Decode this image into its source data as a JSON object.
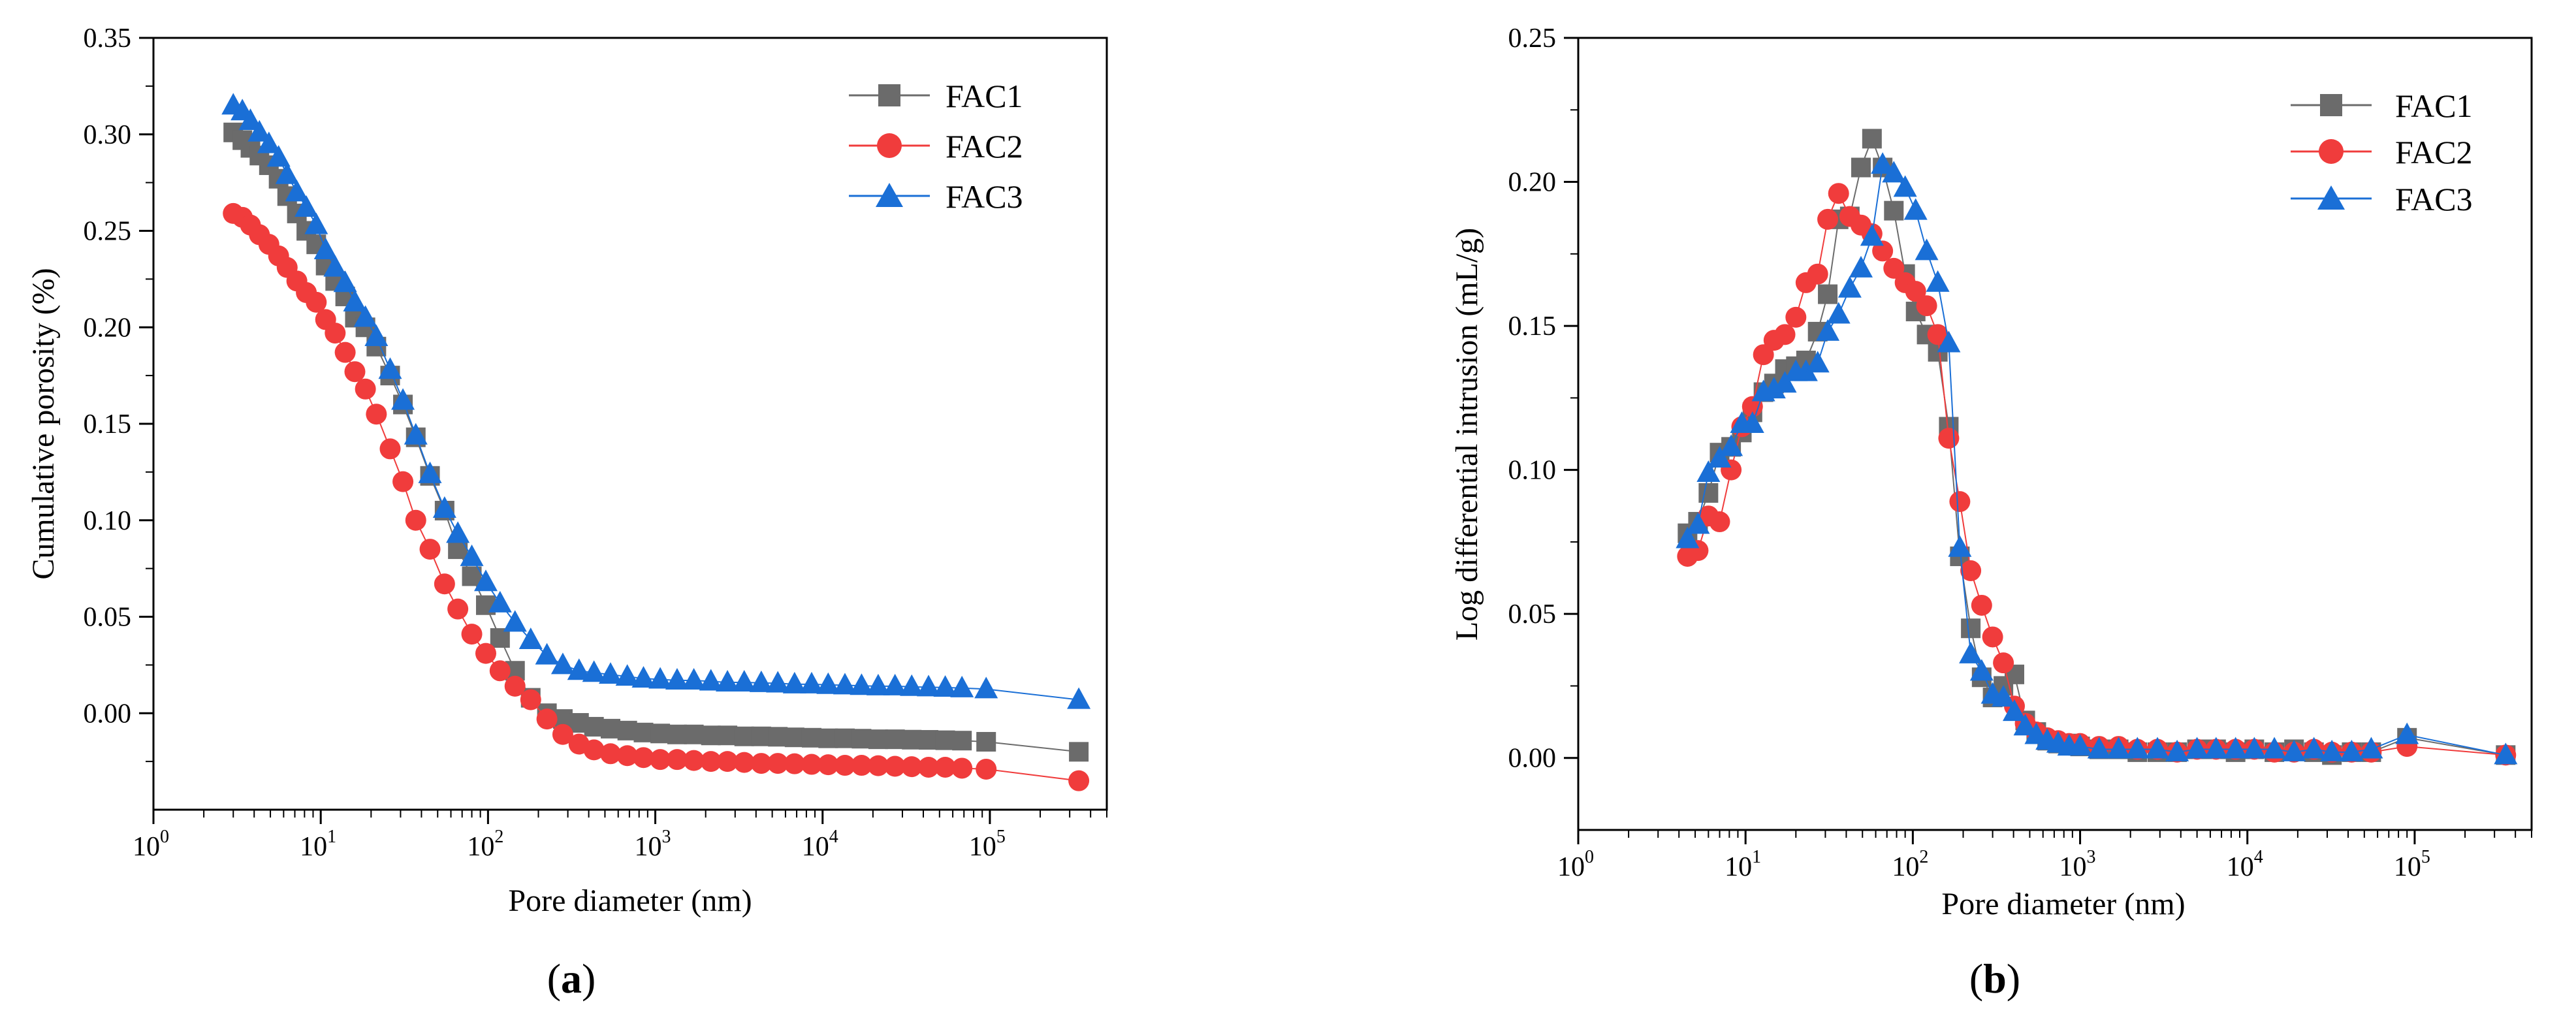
{
  "figure": {
    "panels": [
      {
        "id": "a",
        "label_prefix": "(",
        "label_letter": "a",
        "label_suffix": ")"
      },
      {
        "id": "b",
        "label_prefix": "(",
        "label_letter": "b",
        "label_suffix": ")"
      }
    ]
  },
  "chart_data": [
    {
      "type": "line",
      "panel": "a",
      "title": "",
      "xlabel": "Pore diameter (nm)",
      "ylabel": "Cumulative porosity (%)",
      "xscale": "log",
      "xlim": [
        1,
        500000
      ],
      "ylim": [
        -0.05,
        0.35
      ],
      "xticks": [
        {
          "base": "10",
          "exp": "0",
          "value": 1
        },
        {
          "base": "10",
          "exp": "1",
          "value": 10
        },
        {
          "base": "10",
          "exp": "2",
          "value": 100
        },
        {
          "base": "10",
          "exp": "3",
          "value": 1000
        },
        {
          "base": "10",
          "exp": "4",
          "value": 10000
        },
        {
          "base": "10",
          "exp": "5",
          "value": 100000
        }
      ],
      "yticks": [
        {
          "label": "0.00",
          "value": 0.0
        },
        {
          "label": "0.05",
          "value": 0.05
        },
        {
          "label": "0.10",
          "value": 0.1
        },
        {
          "label": "0.15",
          "value": 0.15
        },
        {
          "label": "0.20",
          "value": 0.2
        },
        {
          "label": "0.25",
          "value": 0.25
        },
        {
          "label": "0.30",
          "value": 0.3
        },
        {
          "label": "0.35",
          "value": 0.35
        }
      ],
      "legend_position": "top-right",
      "series": [
        {
          "name": "FAC1",
          "color": "#6b6b6b",
          "marker": "square",
          "x": [
            3,
            3.4,
            3.8,
            4.3,
            4.9,
            5.6,
            6.3,
            7.2,
            8.2,
            9.4,
            10.7,
            12.2,
            14,
            16,
            18.5,
            21.5,
            26,
            31,
            37,
            45,
            55,
            66,
            80,
            97,
            118,
            145,
            180,
            225,
            280,
            350,
            430,
            540,
            680,
            850,
            1070,
            1350,
            1700,
            2150,
            2700,
            3400,
            4300,
            5400,
            6800,
            8600,
            10800,
            13600,
            17100,
            21500,
            27100,
            34100,
            43000,
            54100,
            68100,
            95000,
            340000
          ],
          "y": [
            0.301,
            0.297,
            0.293,
            0.289,
            0.284,
            0.277,
            0.268,
            0.259,
            0.25,
            0.243,
            0.232,
            0.224,
            0.216,
            0.205,
            0.2,
            0.19,
            0.175,
            0.16,
            0.143,
            0.123,
            0.105,
            0.085,
            0.071,
            0.056,
            0.039,
            0.022,
            0.008,
            0.0,
            -0.003,
            -0.005,
            -0.007,
            -0.008,
            -0.009,
            -0.01,
            -0.0105,
            -0.011,
            -0.011,
            -0.0115,
            -0.0115,
            -0.012,
            -0.012,
            -0.0122,
            -0.0125,
            -0.0127,
            -0.013,
            -0.013,
            -0.0132,
            -0.0135,
            -0.0135,
            -0.0137,
            -0.0138,
            -0.014,
            -0.0142,
            -0.0148,
            -0.02
          ]
        },
        {
          "name": "FAC2",
          "color": "#f03c3c",
          "marker": "circle",
          "x": [
            3,
            3.4,
            3.8,
            4.3,
            4.9,
            5.6,
            6.3,
            7.2,
            8.2,
            9.4,
            10.7,
            12.2,
            14,
            16,
            18.5,
            21.5,
            26,
            31,
            37,
            45,
            55,
            66,
            80,
            97,
            118,
            145,
            180,
            225,
            280,
            350,
            430,
            540,
            680,
            850,
            1070,
            1350,
            1700,
            2150,
            2700,
            3400,
            4300,
            5400,
            6800,
            8600,
            10800,
            13600,
            17100,
            21500,
            27100,
            34100,
            43000,
            54100,
            68100,
            95000,
            340000
          ],
          "y": [
            0.259,
            0.257,
            0.253,
            0.248,
            0.243,
            0.237,
            0.231,
            0.224,
            0.218,
            0.213,
            0.204,
            0.197,
            0.187,
            0.177,
            0.168,
            0.155,
            0.137,
            0.12,
            0.1,
            0.085,
            0.067,
            0.054,
            0.041,
            0.031,
            0.022,
            0.014,
            0.007,
            -0.003,
            -0.011,
            -0.016,
            -0.019,
            -0.021,
            -0.022,
            -0.023,
            -0.024,
            -0.024,
            -0.0245,
            -0.025,
            -0.025,
            -0.0255,
            -0.026,
            -0.026,
            -0.0262,
            -0.0265,
            -0.0267,
            -0.027,
            -0.027,
            -0.0272,
            -0.0275,
            -0.0277,
            -0.028,
            -0.028,
            -0.0285,
            -0.029,
            -0.035
          ]
        },
        {
          "name": "FAC3",
          "color": "#1a6fd6",
          "marker": "triangle",
          "x": [
            3,
            3.4,
            3.8,
            4.3,
            4.9,
            5.6,
            6.3,
            7.2,
            8.2,
            9.4,
            10.7,
            12.2,
            14,
            16,
            18.5,
            21.5,
            26,
            31,
            37,
            45,
            55,
            66,
            80,
            97,
            118,
            145,
            180,
            225,
            280,
            350,
            430,
            540,
            680,
            850,
            1070,
            1350,
            1700,
            2150,
            2700,
            3400,
            4300,
            5400,
            6800,
            8600,
            10800,
            13600,
            17100,
            21500,
            27100,
            34100,
            43000,
            54100,
            68100,
            95000,
            340000
          ],
          "y": [
            0.315,
            0.312,
            0.307,
            0.301,
            0.295,
            0.288,
            0.279,
            0.27,
            0.262,
            0.253,
            0.24,
            0.231,
            0.223,
            0.213,
            0.205,
            0.195,
            0.178,
            0.162,
            0.144,
            0.124,
            0.106,
            0.093,
            0.081,
            0.068,
            0.057,
            0.047,
            0.038,
            0.03,
            0.025,
            0.022,
            0.021,
            0.02,
            0.019,
            0.018,
            0.0175,
            0.017,
            0.017,
            0.0165,
            0.016,
            0.016,
            0.0157,
            0.0155,
            0.015,
            0.015,
            0.0147,
            0.0145,
            0.0142,
            0.014,
            0.014,
            0.0137,
            0.0135,
            0.0133,
            0.013,
            0.0125,
            0.007
          ]
        }
      ]
    },
    {
      "type": "line",
      "panel": "b",
      "title": "",
      "xlabel": "Pore diameter (nm)",
      "ylabel": "Log differential intrusion (mL/g)",
      "xscale": "log",
      "xlim": [
        1,
        500000
      ],
      "ylim": [
        -0.025,
        0.25
      ],
      "xticks": [
        {
          "base": "10",
          "exp": "0",
          "value": 1
        },
        {
          "base": "10",
          "exp": "1",
          "value": 10
        },
        {
          "base": "10",
          "exp": "2",
          "value": 100
        },
        {
          "base": "10",
          "exp": "3",
          "value": 1000
        },
        {
          "base": "10",
          "exp": "4",
          "value": 10000
        },
        {
          "base": "10",
          "exp": "5",
          "value": 100000
        }
      ],
      "yticks": [
        {
          "label": "0.00",
          "value": 0.0
        },
        {
          "label": "0.05",
          "value": 0.05
        },
        {
          "label": "0.10",
          "value": 0.1
        },
        {
          "label": "0.15",
          "value": 0.15
        },
        {
          "label": "0.20",
          "value": 0.2
        },
        {
          "label": "0.25",
          "value": 0.25
        }
      ],
      "legend_position": "top-right",
      "series": [
        {
          "name": "FAC1",
          "color": "#6b6b6b",
          "marker": "square",
          "x": [
            4.5,
            5.2,
            6,
            7,
            8.2,
            9.5,
            11,
            12.8,
            14.8,
            17.2,
            20,
            23,
            27,
            31,
            36,
            42,
            49,
            57,
            66,
            77,
            90,
            104,
            121,
            141,
            164,
            191,
            222,
            258,
            300,
            348,
            405,
            470,
            547,
            636,
            739,
            859,
            1000,
            1300,
            1700,
            2200,
            2900,
            3800,
            5000,
            6500,
            8500,
            11000,
            14500,
            19000,
            25000,
            32000,
            42000,
            55000,
            90000,
            350000
          ],
          "y": [
            0.078,
            0.082,
            0.092,
            0.106,
            0.108,
            0.113,
            0.12,
            0.127,
            0.13,
            0.135,
            0.136,
            0.138,
            0.148,
            0.161,
            0.187,
            0.188,
            0.205,
            0.215,
            0.205,
            0.19,
            0.168,
            0.155,
            0.147,
            0.141,
            0.115,
            0.07,
            0.045,
            0.028,
            0.021,
            0.025,
            0.029,
            0.013,
            0.009,
            0.006,
            0.005,
            0.005,
            0.004,
            0.003,
            0.003,
            0.002,
            0.002,
            0.002,
            0.003,
            0.003,
            0.002,
            0.003,
            0.002,
            0.003,
            0.002,
            0.001,
            0.002,
            0.002,
            0.007,
            0.001
          ]
        },
        {
          "name": "FAC2",
          "color": "#f03c3c",
          "marker": "circle",
          "x": [
            4.5,
            5.2,
            6,
            7,
            8.2,
            9.5,
            11,
            12.8,
            14.8,
            17.2,
            20,
            23,
            27,
            31,
            36,
            42,
            49,
            57,
            66,
            77,
            90,
            104,
            121,
            141,
            164,
            191,
            222,
            258,
            300,
            348,
            405,
            470,
            547,
            636,
            739,
            859,
            1000,
            1300,
            1700,
            2200,
            2900,
            3800,
            5000,
            6500,
            8500,
            11000,
            14500,
            19000,
            25000,
            32000,
            42000,
            55000,
            90000,
            350000
          ],
          "y": [
            0.07,
            0.072,
            0.084,
            0.082,
            0.1,
            0.115,
            0.122,
            0.14,
            0.145,
            0.147,
            0.153,
            0.165,
            0.168,
            0.187,
            0.196,
            0.188,
            0.185,
            0.182,
            0.176,
            0.17,
            0.165,
            0.162,
            0.157,
            0.147,
            0.111,
            0.089,
            0.065,
            0.053,
            0.042,
            0.033,
            0.018,
            0.012,
            0.009,
            0.007,
            0.006,
            0.005,
            0.005,
            0.004,
            0.004,
            0.003,
            0.003,
            0.002,
            0.003,
            0.003,
            0.003,
            0.003,
            0.002,
            0.002,
            0.003,
            0.002,
            0.002,
            0.002,
            0.004,
            0.001
          ]
        },
        {
          "name": "FAC3",
          "color": "#1a6fd6",
          "marker": "triangle",
          "x": [
            4.5,
            5.2,
            6,
            7,
            8.2,
            9.5,
            11,
            12.8,
            14.8,
            17.2,
            20,
            23,
            27,
            31,
            36,
            42,
            49,
            57,
            66,
            77,
            90,
            104,
            121,
            141,
            164,
            191,
            222,
            258,
            300,
            348,
            405,
            470,
            547,
            636,
            739,
            859,
            1000,
            1300,
            1700,
            2200,
            2900,
            3800,
            5000,
            6500,
            8500,
            11000,
            14500,
            19000,
            25000,
            32000,
            42000,
            55000,
            90000,
            350000
          ],
          "y": [
            0.076,
            0.081,
            0.099,
            0.104,
            0.108,
            0.116,
            0.116,
            0.127,
            0.128,
            0.13,
            0.134,
            0.134,
            0.137,
            0.148,
            0.154,
            0.163,
            0.17,
            0.181,
            0.206,
            0.203,
            0.198,
            0.19,
            0.176,
            0.165,
            0.144,
            0.073,
            0.036,
            0.03,
            0.022,
            0.021,
            0.016,
            0.011,
            0.008,
            0.006,
            0.005,
            0.004,
            0.004,
            0.003,
            0.003,
            0.003,
            0.003,
            0.002,
            0.003,
            0.003,
            0.003,
            0.003,
            0.003,
            0.002,
            0.003,
            0.002,
            0.002,
            0.003,
            0.008,
            0.001
          ]
        }
      ]
    }
  ]
}
